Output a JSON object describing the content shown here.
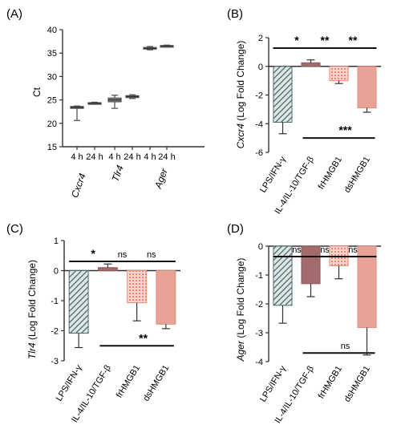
{
  "chart_data": [
    {
      "panel": "(A)",
      "type": "boxplot",
      "ylabel": "Ct",
      "ylim": [
        15,
        40
      ],
      "yticks": [
        15,
        20,
        25,
        30,
        35,
        40
      ],
      "categories": [
        "4 h",
        "24 h",
        "4 h",
        "24 h",
        "4 h",
        "24 h"
      ],
      "groups": [
        "Cxcr4",
        "Tlr4",
        "Ager"
      ],
      "boxes": [
        {
          "min": 20.6,
          "q1": 23.2,
          "median": 23.4,
          "q3": 23.6,
          "max": 23.7
        },
        {
          "min": 24.1,
          "q1": 24.2,
          "median": 24.3,
          "q3": 24.4,
          "max": 24.5
        },
        {
          "min": 23.2,
          "q1": 24.6,
          "median": 25.0,
          "q3": 25.4,
          "max": 26.0
        },
        {
          "min": 25.3,
          "q1": 25.5,
          "median": 25.7,
          "q3": 25.9,
          "max": 26.1
        },
        {
          "min": 35.7,
          "q1": 35.9,
          "median": 36.0,
          "q3": 36.2,
          "max": 36.4
        },
        {
          "min": 36.3,
          "q1": 36.4,
          "median": 36.5,
          "q3": 36.6,
          "max": 36.7
        }
      ]
    },
    {
      "panel": "(B)",
      "type": "bar",
      "ylabel_italic": "Cxcr4",
      "ylabel_rest": " (Log Fold Change)",
      "ylim": [
        -6,
        2
      ],
      "yticks": [
        -6,
        -4,
        -2,
        0,
        2
      ],
      "categories": [
        "LPS/IFN-γ",
        "IL-4/IL-10/TGF-β",
        "frHMGB1",
        "dsHMGB1"
      ],
      "values": [
        -3.9,
        0.25,
        -1.0,
        -2.9
      ],
      "errors": [
        0.8,
        0.2,
        0.2,
        0.3
      ],
      "sig_top": [
        {
          "from": 0,
          "to": 1,
          "label": "*"
        },
        {
          "from": 1,
          "to": 2,
          "label": "**"
        },
        {
          "from": 2,
          "to": 3,
          "label": "**"
        }
      ],
      "sig_bottom": {
        "from": 1,
        "to": 3,
        "label": "***",
        "y": -5.0
      }
    },
    {
      "panel": "(C)",
      "type": "bar",
      "ylabel_italic": "Tlr4",
      "ylabel_rest": " (Log Fold Change)",
      "ylim": [
        -3,
        1
      ],
      "yticks": [
        -3,
        -2,
        -1,
        0,
        1
      ],
      "categories": [
        "LPS/IFN-γ",
        "IL-4/IL-10/TGF-β",
        "frHMGB1",
        "dsHMGB1"
      ],
      "values": [
        -2.08,
        0.1,
        -1.07,
        -1.78
      ],
      "errors": [
        0.48,
        0.12,
        0.6,
        0.15
      ],
      "sig_top": [
        {
          "from": 0,
          "to": 1,
          "label": "*"
        },
        {
          "from": 1,
          "to": 2,
          "label": "ns"
        },
        {
          "from": 2,
          "to": 3,
          "label": "ns"
        }
      ],
      "sig_bottom": {
        "from": 1,
        "to": 3,
        "label": "**",
        "y": -2.5
      }
    },
    {
      "panel": "(D)",
      "type": "bar",
      "ylabel_italic": "Ager",
      "ylabel_rest": " (Log Fold Change)",
      "ylim": [
        -4,
        0
      ],
      "yticks": [
        -4,
        -3,
        -2,
        -1,
        0
      ],
      "categories": [
        "LPS/IFN-γ",
        "IL-4/IL-10/TGF-β",
        "frHMGB1",
        "dsHMGB1"
      ],
      "values": [
        -2.05,
        -1.3,
        -0.68,
        -2.82
      ],
      "errors": [
        0.62,
        0.45,
        0.45,
        0.95
      ],
      "sig_top": [
        {
          "from": 0,
          "to": 1,
          "label": "ns"
        },
        {
          "from": 1,
          "to": 2,
          "label": "ns"
        },
        {
          "from": 2,
          "to": 3,
          "label": "ns"
        }
      ],
      "sig_bottom": {
        "from": 1,
        "to": 3,
        "label": "ns",
        "y": -3.7
      }
    }
  ],
  "colors": {
    "bar1": "#4a6b6b",
    "bar2": "#a36b6b",
    "bar3": "#f28c7a",
    "bar4": "#e8a396",
    "box": "#555555",
    "axis": "#333333"
  }
}
